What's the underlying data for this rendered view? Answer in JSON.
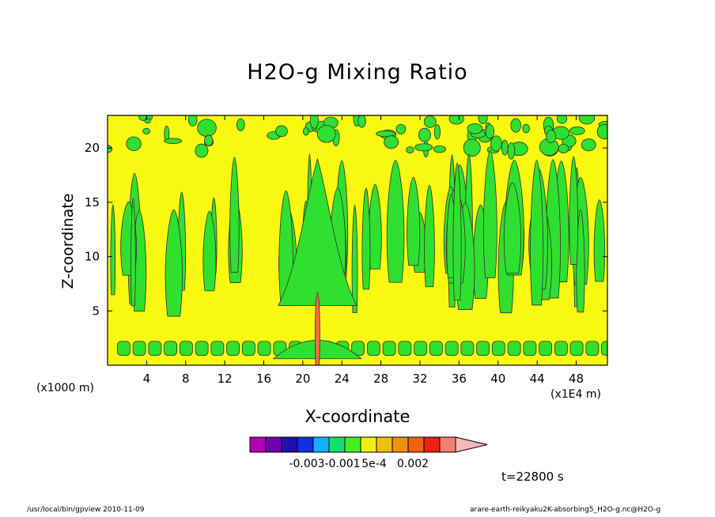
{
  "chart_data": {
    "type": "heatmap",
    "title": "H2O-g Mixing Ratio",
    "xlabel": "X-coordinate",
    "ylabel": "Z-coordinate",
    "x_unit_left": "(x1000 m)",
    "x_unit_right": "(x1E4 m)",
    "xlim": [
      0,
      51.2
    ],
    "ylim": [
      0,
      23
    ],
    "x_ticks": [
      4,
      8,
      12,
      16,
      20,
      24,
      28,
      32,
      36,
      40,
      44,
      48
    ],
    "y_ticks": [
      5,
      10,
      15,
      20
    ],
    "grid": false,
    "colorbar": {
      "position": "bottom",
      "colors": [
        "#b000b0",
        "#7000b0",
        "#2010b0",
        "#1030e0",
        "#10b0ff",
        "#10e070",
        "#40f020",
        "#f0f010",
        "#f0c010",
        "#f09010",
        "#f06010",
        "#f02010",
        "#f08070",
        "#f8b8b8"
      ],
      "labels": [
        "-0.003",
        "-0.001",
        "5e-4",
        "0.002"
      ]
    },
    "field_colors": {
      "background": "#f8f810",
      "moist": "#30e030",
      "contour": "#303030",
      "peak": "#f07040"
    },
    "time_label": "t=22800 s"
  },
  "footer": {
    "left": "/usr/local/bin/gpview  2010-11-09",
    "right": "arare-earth-reikyaku2K-absorbing5_H2O-g.nc@H2O-g"
  }
}
